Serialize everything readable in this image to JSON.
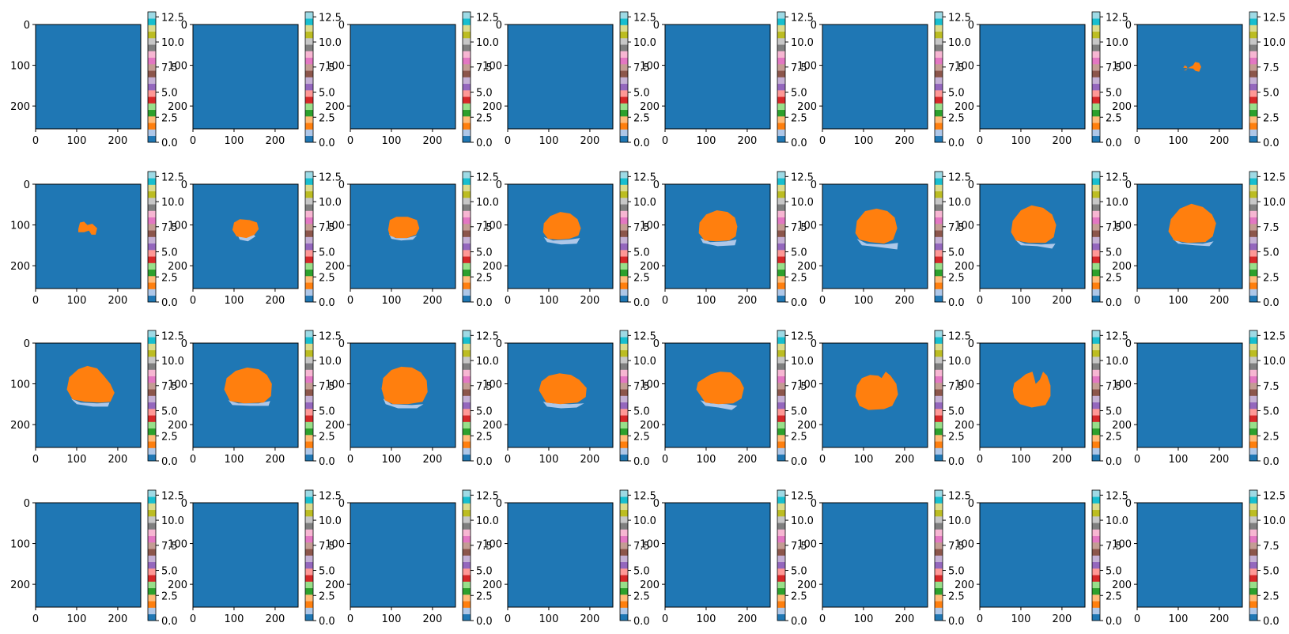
{
  "chart_data": {
    "type": "heatmap",
    "layout": {
      "rows": 4,
      "cols": 8
    },
    "image_size": [
      256,
      256
    ],
    "x_ticks": [
      "0",
      "100",
      "200"
    ],
    "y_ticks": [
      "0",
      "100",
      "200"
    ],
    "colorbar": {
      "colormap": "tab20",
      "range": [
        0,
        13
      ],
      "ticks": [
        "0.0",
        "2.5",
        "5.0",
        "7.5",
        "10.0",
        "12.5"
      ],
      "tick_values": [
        0,
        2.5,
        5,
        7.5,
        10,
        12.5
      ],
      "colors": [
        "#1f77b4",
        "#aec7e8",
        "#ff7f0e",
        "#ffbb78",
        "#2ca02c",
        "#98df8a",
        "#d62728",
        "#ff9896",
        "#9467bd",
        "#c5b0d5",
        "#8c564b",
        "#c49c94",
        "#e377c2",
        "#f7b6d2",
        "#7f7f7f",
        "#c7c7c7",
        "#bcbd22",
        "#dbdb8d",
        "#17becf",
        "#9edae5"
      ]
    },
    "class_colors": {
      "background": "#1f77b4",
      "class_1": "#aec7e8",
      "class_2": "#ff7f0e"
    },
    "panels": [
      {
        "id": "r1c1",
        "class_2": null,
        "class_1": null
      },
      {
        "id": "r1c2",
        "class_2": null,
        "class_1": null
      },
      {
        "id": "r1c3",
        "class_2": null,
        "class_1": null
      },
      {
        "id": "r1c4",
        "class_2": null,
        "class_1": null
      },
      {
        "id": "r1c5",
        "class_2": null,
        "class_1": null
      },
      {
        "id": "r1c6",
        "class_2": null,
        "class_1": null
      },
      {
        "id": "r1c7",
        "class_2": null,
        "class_1": null
      },
      {
        "id": "r1c8",
        "class_2": [
          [
            112,
            106
          ],
          [
            116,
            100
          ],
          [
            122,
            104
          ],
          [
            120,
            112
          ],
          [
            113,
            113
          ],
          [
            136,
            100
          ],
          [
            141,
            92
          ],
          [
            151,
            94
          ],
          [
            156,
            104
          ],
          [
            151,
            116
          ],
          [
            142,
            114
          ],
          [
            136,
            108
          ]
        ],
        "class_1": null
      },
      {
        "id": "r2c1",
        "class_2": [
          [
            104,
            110
          ],
          [
            108,
            94
          ],
          [
            118,
            92
          ],
          [
            126,
            100
          ],
          [
            138,
            97
          ],
          [
            150,
            108
          ],
          [
            146,
            124
          ],
          [
            136,
            124
          ],
          [
            130,
            114
          ],
          [
            118,
            118
          ],
          [
            104,
            118
          ]
        ],
        "class_1": null
      },
      {
        "id": "r2c2",
        "class_2": [
          [
            96,
            112
          ],
          [
            100,
            94
          ],
          [
            114,
            86
          ],
          [
            138,
            88
          ],
          [
            156,
            94
          ],
          [
            160,
            110
          ],
          [
            150,
            124
          ],
          [
            130,
            132
          ],
          [
            106,
            128
          ]
        ],
        "class_1": [
          [
            108,
            124
          ],
          [
            114,
            136
          ],
          [
            134,
            140
          ],
          [
            152,
            128
          ],
          [
            148,
            124
          ],
          [
            130,
            130
          ],
          [
            110,
            126
          ]
        ]
      },
      {
        "id": "r2c3",
        "class_2": [
          [
            92,
            112
          ],
          [
            96,
            88
          ],
          [
            112,
            80
          ],
          [
            140,
            80
          ],
          [
            162,
            88
          ],
          [
            168,
            108
          ],
          [
            160,
            124
          ],
          [
            138,
            132
          ],
          [
            112,
            132
          ],
          [
            96,
            126
          ]
        ],
        "class_1": [
          [
            94,
            122
          ],
          [
            100,
            134
          ],
          [
            124,
            138
          ],
          [
            152,
            136
          ],
          [
            162,
            126
          ],
          [
            138,
            132
          ],
          [
            110,
            132
          ]
        ]
      },
      {
        "id": "r2c4",
        "class_2": [
          [
            86,
            118
          ],
          [
            88,
            96
          ],
          [
            104,
            78
          ],
          [
            128,
            68
          ],
          [
            152,
            72
          ],
          [
            170,
            86
          ],
          [
            178,
            108
          ],
          [
            172,
            126
          ],
          [
            150,
            134
          ],
          [
            122,
            136
          ],
          [
            98,
            134
          ]
        ],
        "class_1": [
          [
            88,
            130
          ],
          [
            96,
            142
          ],
          [
            130,
            148
          ],
          [
            168,
            146
          ],
          [
            176,
            132
          ],
          [
            150,
            136
          ],
          [
            110,
            138
          ]
        ]
      },
      {
        "id": "r2c5",
        "class_2": [
          [
            82,
            120
          ],
          [
            84,
            94
          ],
          [
            100,
            74
          ],
          [
            126,
            64
          ],
          [
            152,
            68
          ],
          [
            170,
            82
          ],
          [
            176,
            104
          ],
          [
            172,
            128
          ],
          [
            156,
            138
          ],
          [
            124,
            140
          ],
          [
            96,
            138
          ]
        ],
        "class_1": [
          [
            86,
            132
          ],
          [
            92,
            144
          ],
          [
            128,
            152
          ],
          [
            170,
            150
          ],
          [
            174,
            136
          ],
          [
            150,
            140
          ],
          [
            110,
            142
          ]
        ]
      },
      {
        "id": "r2c6",
        "class_2": [
          [
            80,
            120
          ],
          [
            84,
            90
          ],
          [
            104,
            66
          ],
          [
            132,
            60
          ],
          [
            158,
            66
          ],
          [
            176,
            82
          ],
          [
            182,
            108
          ],
          [
            172,
            136
          ],
          [
            150,
            146
          ],
          [
            116,
            142
          ],
          [
            90,
            136
          ]
        ],
        "class_1": [
          [
            84,
            134
          ],
          [
            96,
            150
          ],
          [
            134,
            154
          ],
          [
            182,
            160
          ],
          [
            184,
            144
          ],
          [
            150,
            148
          ],
          [
            108,
            146
          ]
        ]
      },
      {
        "id": "r2c7",
        "class_2": [
          [
            76,
            118
          ],
          [
            80,
            90
          ],
          [
            100,
            64
          ],
          [
            126,
            52
          ],
          [
            154,
            58
          ],
          [
            176,
            74
          ],
          [
            186,
            100
          ],
          [
            180,
            130
          ],
          [
            160,
            144
          ],
          [
            120,
            144
          ],
          [
            88,
            138
          ]
        ],
        "class_1": [
          [
            86,
            136
          ],
          [
            100,
            150
          ],
          [
            140,
            152
          ],
          [
            176,
            158
          ],
          [
            184,
            146
          ],
          [
            150,
            148
          ],
          [
            110,
            146
          ]
        ]
      },
      {
        "id": "r2c8",
        "class_2": [
          [
            76,
            116
          ],
          [
            82,
            86
          ],
          [
            104,
            60
          ],
          [
            132,
            48
          ],
          [
            160,
            56
          ],
          [
            182,
            74
          ],
          [
            192,
            96
          ],
          [
            184,
            128
          ],
          [
            166,
            142
          ],
          [
            124,
            144
          ],
          [
            90,
            138
          ]
        ],
        "class_1": [
          [
            86,
            134
          ],
          [
            100,
            146
          ],
          [
            140,
            150
          ],
          [
            176,
            152
          ],
          [
            186,
            140
          ],
          [
            160,
            146
          ],
          [
            110,
            144
          ]
        ]
      },
      {
        "id": "r3c1",
        "class_2": [
          [
            76,
            114
          ],
          [
            82,
            84
          ],
          [
            104,
            64
          ],
          [
            126,
            56
          ],
          [
            150,
            62
          ],
          [
            166,
            80
          ],
          [
            182,
            100
          ],
          [
            192,
            122
          ],
          [
            182,
            144
          ],
          [
            156,
            146
          ],
          [
            120,
            144
          ],
          [
            90,
            138
          ]
        ],
        "class_1": [
          [
            86,
            136
          ],
          [
            100,
            150
          ],
          [
            140,
            156
          ],
          [
            176,
            156
          ],
          [
            180,
            146
          ],
          [
            150,
            148
          ],
          [
            110,
            146
          ]
        ]
      },
      {
        "id": "r3c2",
        "class_2": [
          [
            76,
            114
          ],
          [
            82,
            86
          ],
          [
            104,
            68
          ],
          [
            132,
            60
          ],
          [
            160,
            64
          ],
          [
            180,
            78
          ],
          [
            192,
            100
          ],
          [
            190,
            130
          ],
          [
            172,
            146
          ],
          [
            124,
            148
          ],
          [
            90,
            142
          ]
        ],
        "class_1": [
          [
            86,
            140
          ],
          [
            96,
            152
          ],
          [
            140,
            154
          ],
          [
            184,
            154
          ],
          [
            188,
            142
          ],
          [
            160,
            148
          ],
          [
            110,
            148
          ]
        ]
      },
      {
        "id": "r3c3",
        "class_2": [
          [
            76,
            112
          ],
          [
            80,
            86
          ],
          [
            100,
            66
          ],
          [
            124,
            58
          ],
          [
            150,
            60
          ],
          [
            172,
            72
          ],
          [
            186,
            92
          ],
          [
            188,
            120
          ],
          [
            176,
            144
          ],
          [
            140,
            150
          ],
          [
            104,
            150
          ],
          [
            84,
            140
          ]
        ],
        "class_1": [
          [
            80,
            136
          ],
          [
            86,
            150
          ],
          [
            116,
            160
          ],
          [
            162,
            160
          ],
          [
            178,
            150
          ],
          [
            150,
            152
          ],
          [
            100,
            150
          ]
        ]
      },
      {
        "id": "r3c4",
        "class_2": [
          [
            76,
            116
          ],
          [
            82,
            94
          ],
          [
            100,
            80
          ],
          [
            126,
            74
          ],
          [
            154,
            78
          ],
          [
            174,
            90
          ],
          [
            192,
            110
          ],
          [
            190,
            132
          ],
          [
            170,
            146
          ],
          [
            128,
            150
          ],
          [
            94,
            146
          ]
        ],
        "class_1": [
          [
            86,
            144
          ],
          [
            96,
            156
          ],
          [
            130,
            160
          ],
          [
            168,
            158
          ],
          [
            186,
            148
          ],
          [
            150,
            150
          ],
          [
            110,
            148
          ]
        ]
      },
      {
        "id": "r3c5",
        "class_2": [
          [
            76,
            114
          ],
          [
            80,
            96
          ],
          [
            96,
            86
          ],
          [
            112,
            76
          ],
          [
            134,
            70
          ],
          [
            160,
            72
          ],
          [
            182,
            90
          ],
          [
            192,
            110
          ],
          [
            186,
            136
          ],
          [
            166,
            148
          ],
          [
            130,
            150
          ],
          [
            98,
            146
          ]
        ],
        "class_1": [
          [
            86,
            140
          ],
          [
            98,
            154
          ],
          [
            130,
            158
          ],
          [
            162,
            164
          ],
          [
            176,
            154
          ],
          [
            150,
            150
          ],
          [
            110,
            148
          ]
        ]
      },
      {
        "id": "r3c6",
        "class_2": [
          [
            80,
            130
          ],
          [
            84,
            104
          ],
          [
            96,
            86
          ],
          [
            116,
            78
          ],
          [
            136,
            80
          ],
          [
            144,
            86
          ],
          [
            154,
            70
          ],
          [
            166,
            80
          ],
          [
            180,
            100
          ],
          [
            184,
            126
          ],
          [
            170,
            154
          ],
          [
            150,
            162
          ],
          [
            112,
            164
          ],
          [
            90,
            154
          ]
        ],
        "class_1": null
      },
      {
        "id": "r3c7",
        "class_2": [
          [
            80,
            116
          ],
          [
            84,
            98
          ],
          [
            100,
            86
          ],
          [
            112,
            76
          ],
          [
            128,
            70
          ],
          [
            132,
            84
          ],
          [
            136,
            100
          ],
          [
            146,
            90
          ],
          [
            154,
            70
          ],
          [
            164,
            80
          ],
          [
            172,
            104
          ],
          [
            172,
            130
          ],
          [
            160,
            152
          ],
          [
            126,
            158
          ],
          [
            98,
            150
          ],
          [
            84,
            134
          ]
        ],
        "class_1": null
      },
      {
        "id": "r3c8",
        "class_2": null,
        "class_1": null
      },
      {
        "id": "r4c1",
        "class_2": null,
        "class_1": null
      },
      {
        "id": "r4c2",
        "class_2": null,
        "class_1": null
      },
      {
        "id": "r4c3",
        "class_2": null,
        "class_1": null
      },
      {
        "id": "r4c4",
        "class_2": null,
        "class_1": null
      },
      {
        "id": "r4c5",
        "class_2": null,
        "class_1": null
      },
      {
        "id": "r4c6",
        "class_2": null,
        "class_1": null
      },
      {
        "id": "r4c7",
        "class_2": null,
        "class_1": null
      },
      {
        "id": "r4c8",
        "class_2": null,
        "class_1": null
      }
    ]
  }
}
